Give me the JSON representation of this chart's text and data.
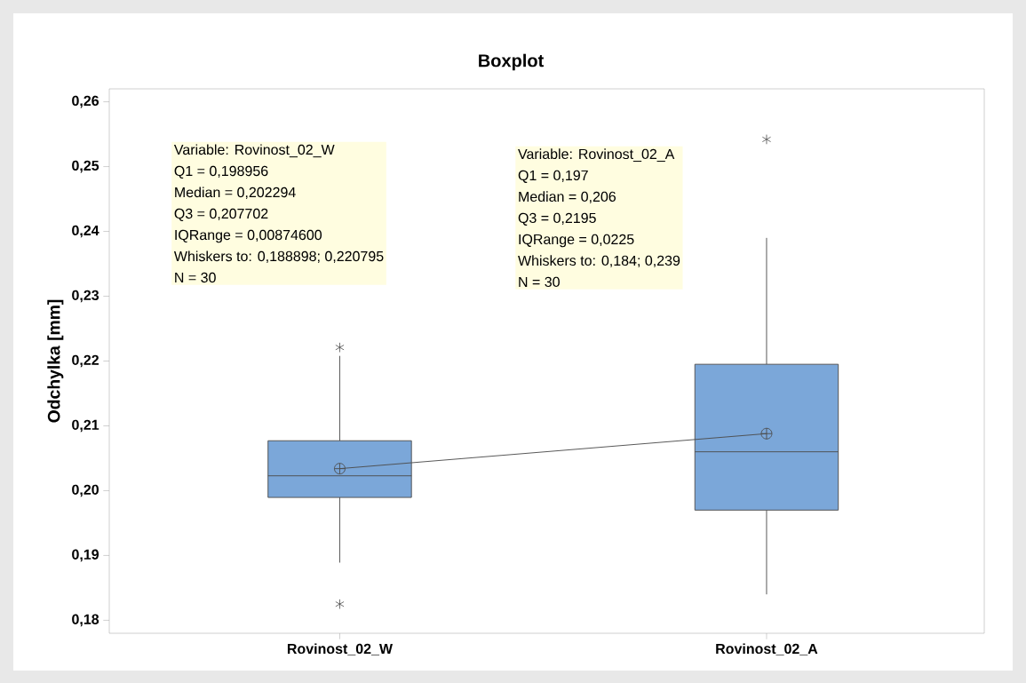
{
  "chart_data": {
    "type": "box",
    "title": "Boxplot",
    "ylabel": "Odchylka [mm]",
    "categories": [
      "Rovinost_02_W",
      "Rovinost_02_A"
    ],
    "boxes": [
      {
        "low": 0.188898,
        "q1": 0.198956,
        "median": 0.202294,
        "q3": 0.207702,
        "high": 0.220795,
        "mean": 0.2034,
        "outliers": [
          0.2221,
          0.1825
        ]
      },
      {
        "low": 0.184,
        "q1": 0.197,
        "median": 0.206,
        "q3": 0.2195,
        "high": 0.239,
        "mean": 0.2088,
        "outliers": [
          0.2542
        ]
      }
    ],
    "color": "#7ba7d9",
    "series": [
      {
        "type": "line",
        "color": "#4c4c4c",
        "values": [
          0.2034,
          0.2088
        ]
      }
    ],
    "ylim": [
      0.178,
      0.262
    ],
    "yticks": [
      {
        "value": 0.18,
        "label": "0,18"
      },
      {
        "value": 0.19,
        "label": "0,19"
      },
      {
        "value": 0.2,
        "label": "0,20"
      },
      {
        "value": 0.21,
        "label": "0,21"
      },
      {
        "value": 0.22,
        "label": "0,22"
      },
      {
        "value": 0.23,
        "label": "0,23"
      },
      {
        "value": 0.24,
        "label": "0,24"
      },
      {
        "value": 0.25,
        "label": "0,25"
      },
      {
        "value": 0.26,
        "label": "0,26"
      }
    ],
    "annotations": [
      "Variable: Rovinost_02_W",
      "Q1 = 0,198956",
      "Median = 0,202294",
      "Q3 = 0,207702",
      "IQRange = 0,00874600",
      "Whiskers to: 0,188898; 0,220795",
      "N = 30",
      "Variable: Rovinost_02_A",
      "Q1 = 0,197",
      "Median = 0,206",
      "Q3 = 0,2195",
      "IQRange = 0,0225",
      "Whiskers to: 0,184; 0,239",
      "N = 30"
    ]
  }
}
